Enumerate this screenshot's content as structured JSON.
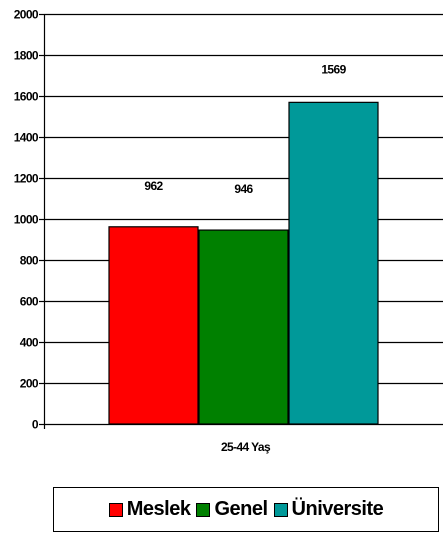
{
  "chart_data": {
    "type": "bar",
    "categories": [
      "25-44 Yaş"
    ],
    "series": [
      {
        "name": "Meslek",
        "values": [
          962
        ],
        "color": "#ff0000"
      },
      {
        "name": "Genel",
        "values": [
          946
        ],
        "color": "#008000"
      },
      {
        "name": "Üniversite",
        "values": [
          1569
        ],
        "color": "#009999"
      }
    ],
    "data_labels": [
      "962",
      "946",
      "1569"
    ],
    "title": "",
    "xlabel": "",
    "ylabel": "",
    "ylim": [
      0,
      2000
    ],
    "yticks": [
      0,
      200,
      400,
      600,
      800,
      1000,
      1200,
      1400,
      1600,
      1800,
      2000
    ],
    "grid": true,
    "legend_position": "bottom"
  }
}
